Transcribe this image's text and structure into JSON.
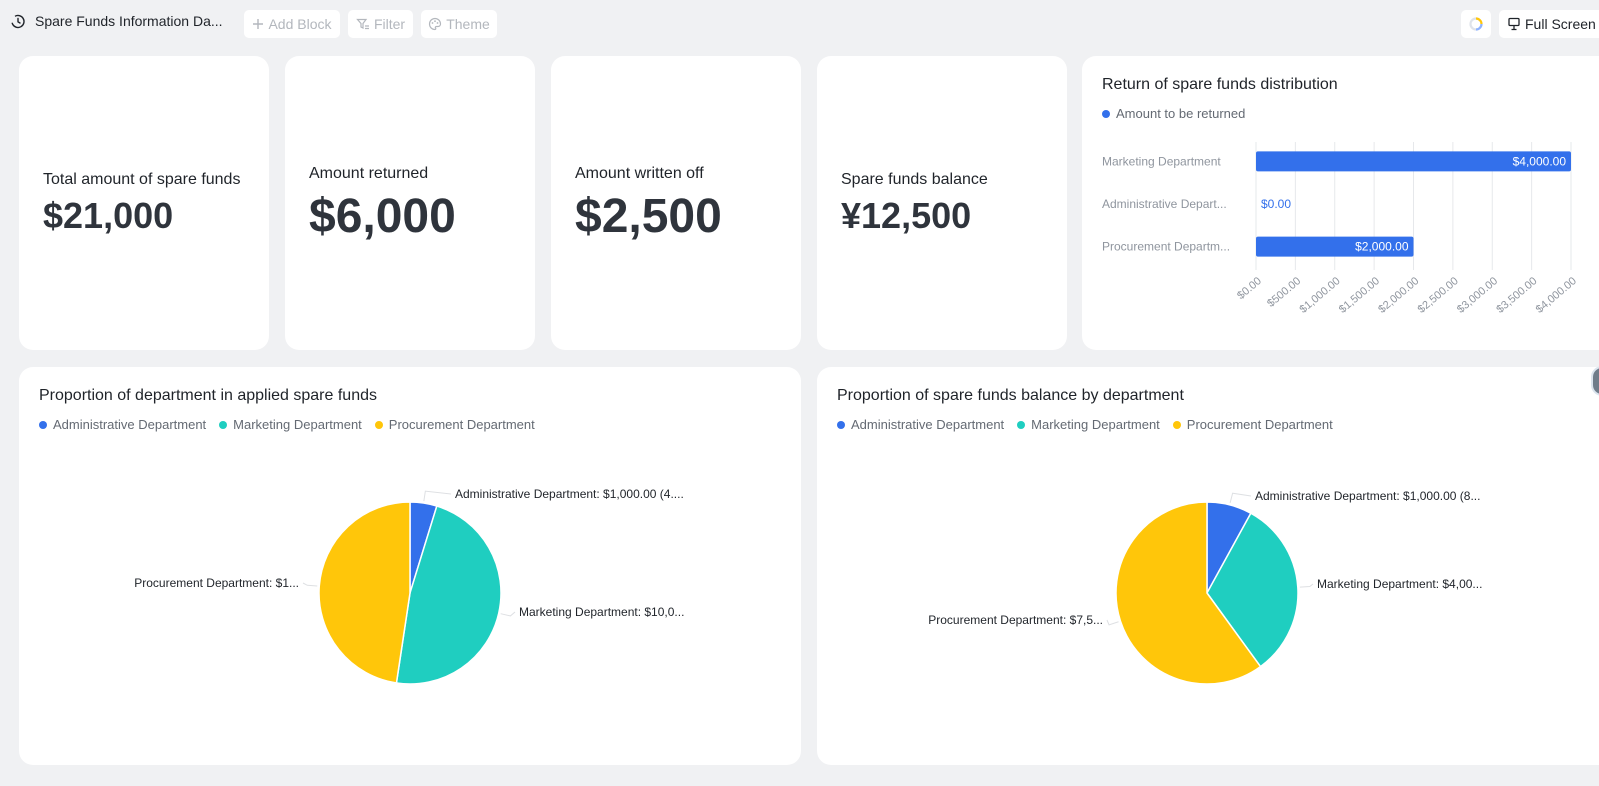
{
  "toolbar": {
    "title": "Spare Funds Information Da...",
    "add_block": "Add Block",
    "filter": "Filter",
    "theme": "Theme",
    "full_screen": "Full Screen"
  },
  "stats": [
    {
      "label": "Total amount of spare funds",
      "value": "$21,000"
    },
    {
      "label": "Amount returned",
      "value": "$6,000"
    },
    {
      "label": "Amount written off",
      "value": "$2,500"
    },
    {
      "label": "Spare funds balance",
      "value": "¥12,500"
    }
  ],
  "colors": {
    "administrative": "#3370eb",
    "marketing": "#1fcec0",
    "procurement": "#ffc60a"
  },
  "bar_card": {
    "title": "Return of spare funds distribution",
    "legend": "Amount to be returned"
  },
  "pie1": {
    "title": "Proportion of department in applied spare funds",
    "legend": [
      "Administrative Department",
      "Marketing Department",
      "Procurement Department"
    ]
  },
  "pie2": {
    "title": "Proportion of spare funds balance by department",
    "legend": [
      "Administrative Department",
      "Marketing Department",
      "Procurement Department"
    ]
  },
  "chart_data": [
    {
      "type": "bar",
      "orientation": "horizontal",
      "title": "Return of spare funds distribution",
      "categories": [
        "Marketing Department",
        "Administrative Department",
        "Procurement Department"
      ],
      "category_labels": [
        "Marketing Department",
        "Administrative Depart...",
        "Procurement Departm..."
      ],
      "series": [
        {
          "name": "Amount to be returned",
          "values": [
            4000,
            0,
            2000
          ]
        }
      ],
      "data_labels": [
        "$4,000.00",
        "$0.00",
        "$2,000.00"
      ],
      "xlim": [
        0,
        4000
      ],
      "ticks": [
        "$0.00",
        "$500.00",
        "$1,000.00",
        "$1,500.00",
        "$2,000.00",
        "$2,500.00",
        "$3,000.00",
        "$3,500.00",
        "$4,000.00"
      ],
      "grid": true,
      "legend_position": "top-left"
    },
    {
      "type": "pie",
      "title": "Proportion of department in applied spare funds",
      "categories": [
        "Administrative Department",
        "Marketing Department",
        "Procurement Department"
      ],
      "values": [
        1000,
        10000,
        10000
      ],
      "labels": [
        "Administrative Department: $1,000.00 (4....",
        "Marketing Department: $10,0...",
        "Procurement Department: $1..."
      ],
      "legend_position": "top-left"
    },
    {
      "type": "pie",
      "title": "Proportion of spare funds balance by department",
      "categories": [
        "Administrative Department",
        "Marketing Department",
        "Procurement Department"
      ],
      "values": [
        1000,
        4000,
        7500
      ],
      "labels": [
        "Administrative Department: $1,000.00 (8...",
        "Marketing Department: $4,00...",
        "Procurement Department: $7,5..."
      ],
      "legend_position": "top-left"
    }
  ]
}
